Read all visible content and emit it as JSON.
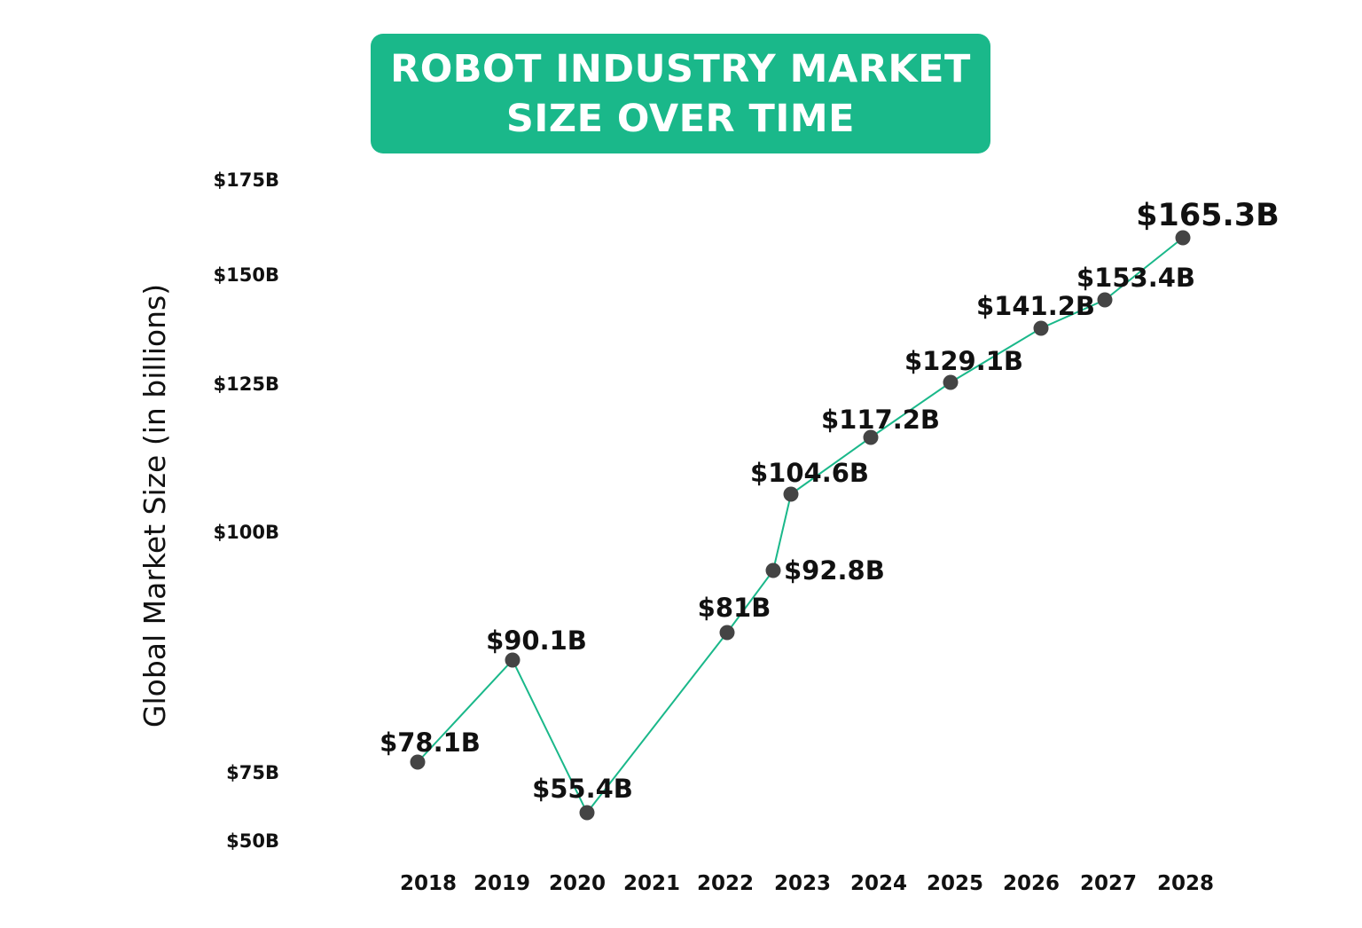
{
  "chart_data": {
    "type": "line",
    "title": "ROBOT INDUSTRY MARKET\nSIZE OVER TIME",
    "xlabel": "",
    "ylabel": "Global Market Size (in billions)",
    "x": [
      "2018",
      "2019",
      "2020",
      "2021",
      "2022",
      "2023",
      "2024",
      "2025",
      "2026",
      "2027",
      "2028"
    ],
    "y_ticks": [
      "$175B",
      "$150B",
      "$125B",
      "$100B",
      "$75B",
      "$50B"
    ],
    "y_tick_values": [
      175,
      150,
      125,
      100,
      75,
      50
    ],
    "values": [
      78.1,
      90.1,
      55.4,
      81,
      92.8,
      104.6,
      117.2,
      129.1,
      141.2,
      153.4,
      165.3
    ],
    "data_labels": [
      "$78.1B",
      "$90.1B",
      "$55.4B",
      "$81B",
      "$92.8B",
      "$104.6B",
      "$117.2B",
      "$129.1B",
      "$141.2B",
      "$153.4B",
      "$165.3B"
    ],
    "grid": false,
    "legend": "none",
    "colors": {
      "title_bg": "#1ab88a",
      "line": "#1ab88a",
      "marker": "#444444",
      "text": "#111111"
    }
  }
}
